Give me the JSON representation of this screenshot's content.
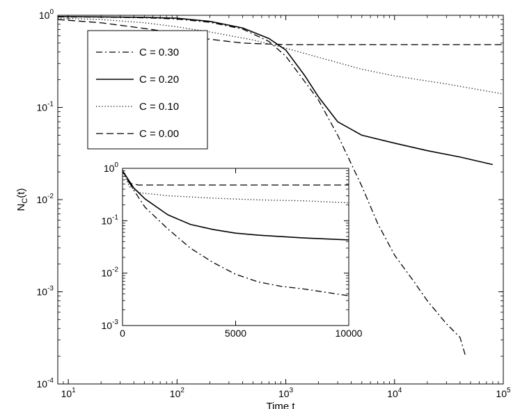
{
  "chart_data": [
    {
      "id": "main",
      "type": "line",
      "title": "",
      "xlabel": "Time t",
      "ylabel_base": "N",
      "ylabel_sub": "C",
      "ylabel_tail": "(t)",
      "xscale": "log",
      "yscale": "log",
      "xlim": [
        8,
        100000
      ],
      "ylim": [
        0.0001,
        1
      ],
      "grid": false,
      "legend_position": "top-left",
      "xticks": [
        {
          "value": 10,
          "base": "10",
          "exp": "1"
        },
        {
          "value": 100,
          "base": "10",
          "exp": "2"
        },
        {
          "value": 1000,
          "base": "10",
          "exp": "3"
        },
        {
          "value": 10000,
          "base": "10",
          "exp": "4"
        },
        {
          "value": 100000,
          "base": "10",
          "exp": "5"
        }
      ],
      "yticks": [
        {
          "value": 1,
          "base": "10",
          "exp": "0"
        },
        {
          "value": 0.1,
          "base": "10",
          "exp": "-1"
        },
        {
          "value": 0.01,
          "base": "10",
          "exp": "-2"
        },
        {
          "value": 0.001,
          "base": "10",
          "exp": "-3"
        },
        {
          "value": 0.0001,
          "base": "10",
          "exp": "-4"
        }
      ],
      "series": [
        {
          "name": "C = 0.30",
          "style": "dashdot",
          "points": [
            [
              8,
              0.96
            ],
            [
              20,
              0.955
            ],
            [
              50,
              0.94
            ],
            [
              100,
              0.91
            ],
            [
              200,
              0.84
            ],
            [
              400,
              0.71
            ],
            [
              700,
              0.52
            ],
            [
              1000,
              0.36
            ],
            [
              2000,
              0.12
            ],
            [
              3000,
              0.05
            ],
            [
              5000,
              0.014
            ],
            [
              7000,
              0.0055
            ],
            [
              10000,
              0.0025
            ],
            [
              15000,
              0.0013
            ],
            [
              20000,
              0.0008
            ],
            [
              30000,
              0.00045
            ],
            [
              40000,
              0.00032
            ],
            [
              45000,
              0.0002
            ]
          ]
        },
        {
          "name": "C = 0.20",
          "style": "solid",
          "points": [
            [
              8,
              0.97
            ],
            [
              20,
              0.96
            ],
            [
              50,
              0.95
            ],
            [
              100,
              0.93
            ],
            [
              200,
              0.86
            ],
            [
              400,
              0.73
            ],
            [
              700,
              0.56
            ],
            [
              1000,
              0.42
            ],
            [
              1500,
              0.22
            ],
            [
              2000,
              0.13
            ],
            [
              3000,
              0.07
            ],
            [
              5000,
              0.05
            ],
            [
              10000,
              0.041
            ],
            [
              20000,
              0.034
            ],
            [
              40000,
              0.029
            ],
            [
              80000,
              0.024
            ]
          ]
        },
        {
          "name": "C = 0.10",
          "style": "dotted",
          "points": [
            [
              8,
              0.93
            ],
            [
              20,
              0.9
            ],
            [
              50,
              0.83
            ],
            [
              100,
              0.75
            ],
            [
              200,
              0.66
            ],
            [
              500,
              0.54
            ],
            [
              1000,
              0.44
            ],
            [
              2000,
              0.35
            ],
            [
              5000,
              0.26
            ],
            [
              10000,
              0.22
            ],
            [
              30000,
              0.18
            ],
            [
              100000,
              0.14
            ]
          ]
        },
        {
          "name": "C = 0.00",
          "style": "dashed",
          "points": [
            [
              8,
              0.9
            ],
            [
              20,
              0.83
            ],
            [
              50,
              0.72
            ],
            [
              100,
              0.64
            ],
            [
              200,
              0.55
            ],
            [
              400,
              0.5
            ],
            [
              1000,
              0.48
            ],
            [
              10000,
              0.48
            ],
            [
              100000,
              0.48
            ]
          ]
        }
      ]
    },
    {
      "id": "inset",
      "type": "line",
      "title": "",
      "xlabel": "",
      "ylabel": "",
      "xscale": "linear",
      "yscale": "log",
      "xlim": [
        0,
        10000
      ],
      "ylim": [
        0.001,
        1
      ],
      "grid": false,
      "xticks": [
        {
          "value": 0,
          "label": "0"
        },
        {
          "value": 5000,
          "label": "5000"
        },
        {
          "value": 10000,
          "label": "10000"
        }
      ],
      "yticks": [
        {
          "value": 1,
          "base": "10",
          "exp": "0"
        },
        {
          "value": 0.1,
          "base": "10",
          "exp": "-1"
        },
        {
          "value": 0.01,
          "base": "10",
          "exp": "-2"
        },
        {
          "value": 0.001,
          "base": "10",
          "exp": "-3"
        }
      ],
      "series": [
        {
          "name": "C = 0.30",
          "style": "dashdot",
          "points": [
            [
              0,
              0.9
            ],
            [
              500,
              0.38
            ],
            [
              1000,
              0.18
            ],
            [
              2000,
              0.07
            ],
            [
              3000,
              0.03
            ],
            [
              4000,
              0.016
            ],
            [
              5000,
              0.0095
            ],
            [
              6000,
              0.0068
            ],
            [
              7000,
              0.0056
            ],
            [
              8000,
              0.005
            ],
            [
              9000,
              0.0043
            ],
            [
              10000,
              0.0037
            ]
          ]
        },
        {
          "name": "C = 0.20",
          "style": "solid",
          "points": [
            [
              0,
              0.9
            ],
            [
              500,
              0.42
            ],
            [
              1000,
              0.26
            ],
            [
              2000,
              0.13
            ],
            [
              3000,
              0.085
            ],
            [
              4000,
              0.068
            ],
            [
              5000,
              0.058
            ],
            [
              6000,
              0.053
            ],
            [
              8000,
              0.047
            ],
            [
              10000,
              0.043
            ]
          ]
        },
        {
          "name": "C = 0.10",
          "style": "dotted",
          "points": [
            [
              0,
              0.9
            ],
            [
              300,
              0.45
            ],
            [
              800,
              0.34
            ],
            [
              2000,
              0.3
            ],
            [
              4000,
              0.27
            ],
            [
              6000,
              0.25
            ],
            [
              8000,
              0.24
            ],
            [
              10000,
              0.22
            ]
          ]
        },
        {
          "name": "C = 0.00",
          "style": "dashed",
          "points": [
            [
              0,
              0.9
            ],
            [
              300,
              0.52
            ],
            [
              700,
              0.48
            ],
            [
              10000,
              0.48
            ]
          ]
        }
      ]
    }
  ]
}
